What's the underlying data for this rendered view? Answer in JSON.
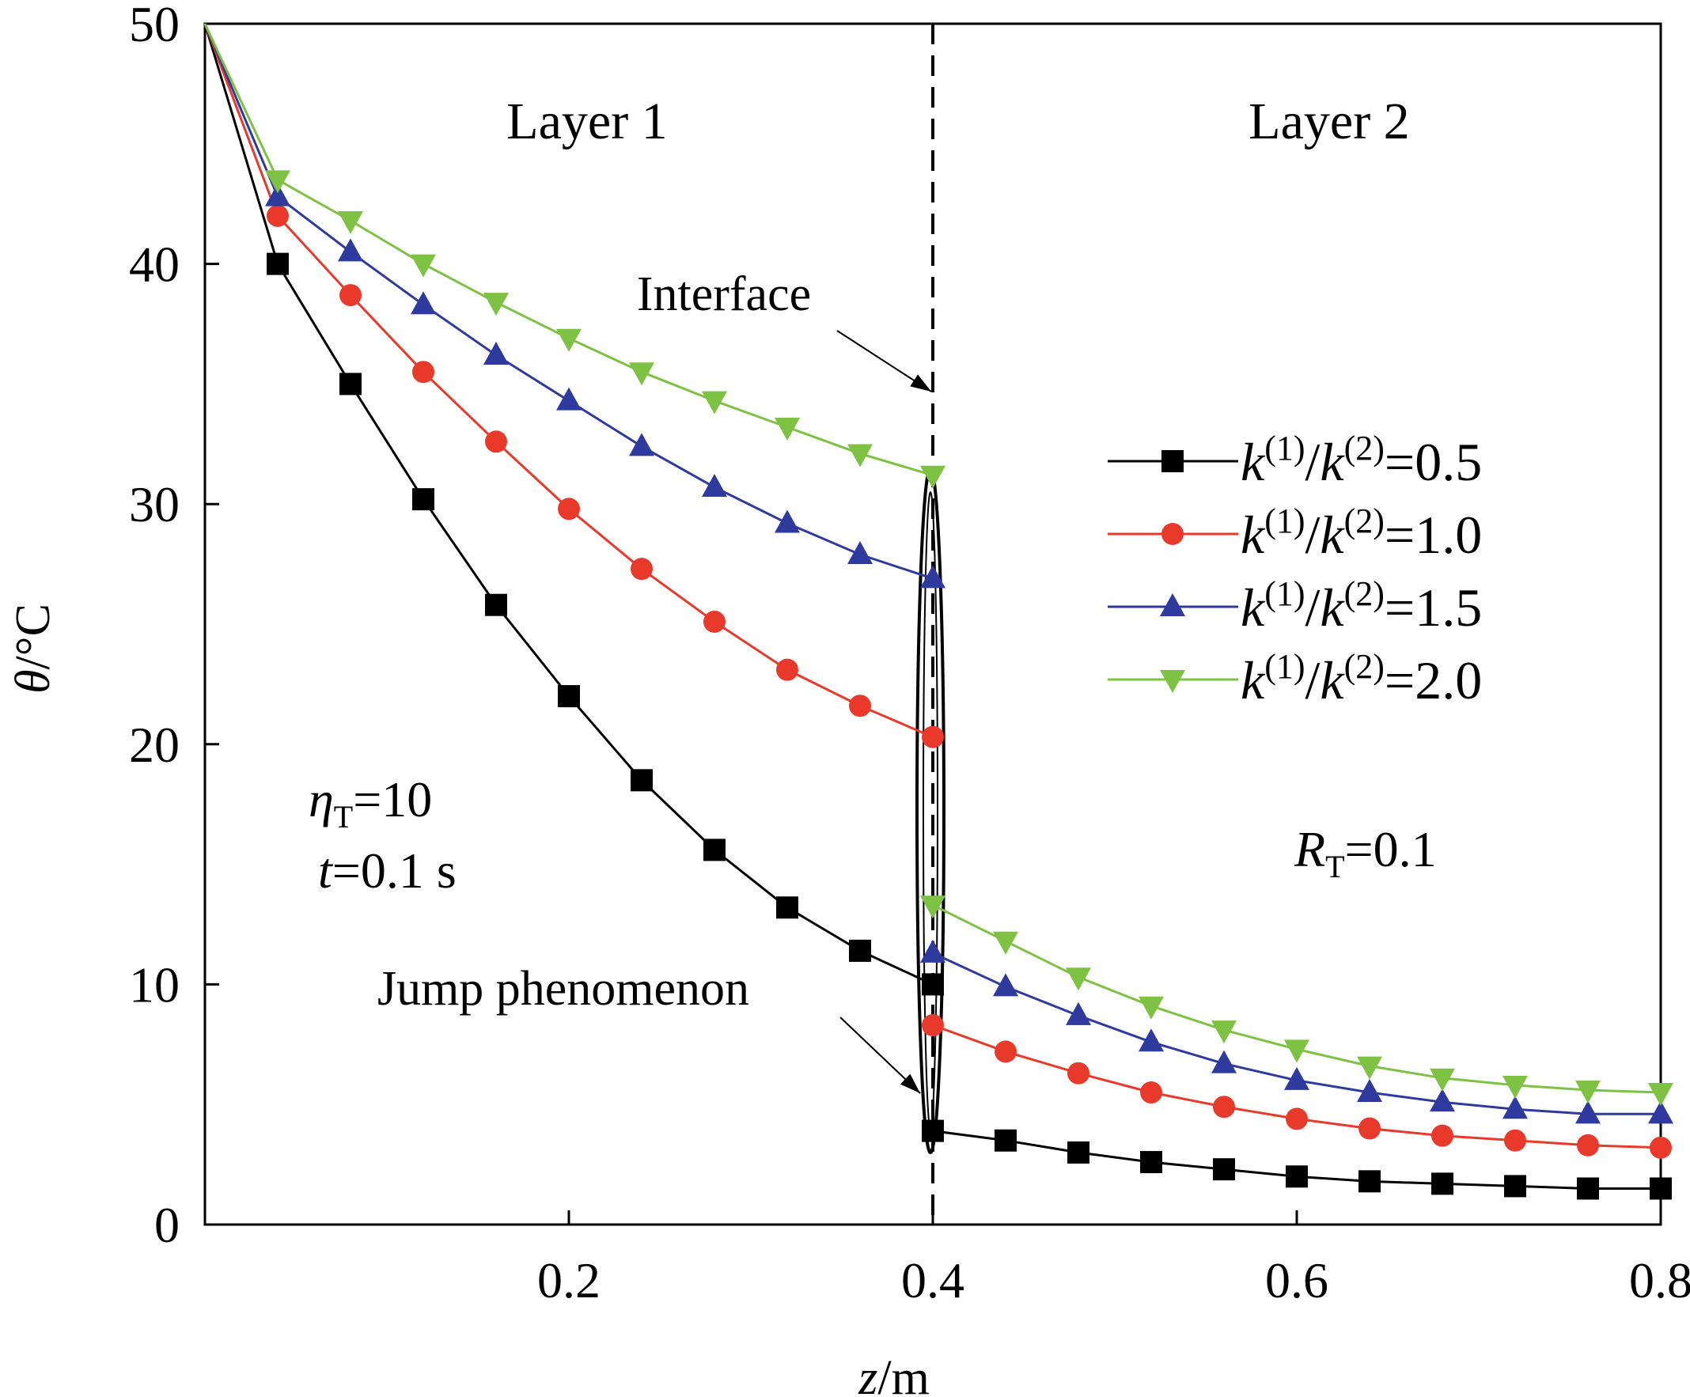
{
  "chart_data": {
    "type": "line",
    "xlabel": {
      "var": "z",
      "unit": "/m"
    },
    "ylabel": {
      "var": "θ",
      "unit": "/°C"
    },
    "xlim": [
      0,
      0.8
    ],
    "ylim": [
      0,
      50
    ],
    "x_ticks": [
      {
        "v": 0.2,
        "label": "0.2"
      },
      {
        "v": 0.4,
        "label": "0.4"
      },
      {
        "v": 0.6,
        "label": "0.6"
      },
      {
        "v": 0.8,
        "label": "0.8"
      }
    ],
    "y_ticks": [
      {
        "v": 0,
        "label": "0"
      },
      {
        "v": 10,
        "label": "10"
      },
      {
        "v": 20,
        "label": "20"
      },
      {
        "v": 30,
        "label": "30"
      },
      {
        "v": 40,
        "label": "40"
      },
      {
        "v": 50,
        "label": "50"
      }
    ],
    "grid": false,
    "legend_position": "right",
    "interface_z": 0.4,
    "series": [
      {
        "name": "k(1)/k(2)=0.5",
        "value": "0.5",
        "color": "#000000",
        "marker": "square",
        "layer1": [
          [
            0,
            50
          ],
          [
            0.04,
            40
          ],
          [
            0.08,
            35
          ],
          [
            0.12,
            30.2
          ],
          [
            0.16,
            25.8
          ],
          [
            0.2,
            22
          ],
          [
            0.24,
            18.5
          ],
          [
            0.28,
            15.6
          ],
          [
            0.32,
            13.2
          ],
          [
            0.36,
            11.4
          ],
          [
            0.4,
            10
          ]
        ],
        "layer2": [
          [
            0.4,
            3.9
          ],
          [
            0.44,
            3.5
          ],
          [
            0.48,
            3
          ],
          [
            0.52,
            2.6
          ],
          [
            0.56,
            2.3
          ],
          [
            0.6,
            2
          ],
          [
            0.64,
            1.8
          ],
          [
            0.68,
            1.7
          ],
          [
            0.72,
            1.6
          ],
          [
            0.76,
            1.5
          ],
          [
            0.8,
            1.5
          ]
        ]
      },
      {
        "name": "k(1)/k(2)=1.0",
        "value": "1.0",
        "color": "#e8392a",
        "marker": "circle",
        "layer1": [
          [
            0,
            50
          ],
          [
            0.04,
            42
          ],
          [
            0.08,
            38.7
          ],
          [
            0.12,
            35.5
          ],
          [
            0.16,
            32.6
          ],
          [
            0.2,
            29.8
          ],
          [
            0.24,
            27.3
          ],
          [
            0.28,
            25.1
          ],
          [
            0.32,
            23.1
          ],
          [
            0.36,
            21.6
          ],
          [
            0.4,
            20.3
          ]
        ],
        "layer2": [
          [
            0.4,
            8.3
          ],
          [
            0.44,
            7.2
          ],
          [
            0.48,
            6.3
          ],
          [
            0.52,
            5.5
          ],
          [
            0.56,
            4.9
          ],
          [
            0.6,
            4.4
          ],
          [
            0.64,
            4
          ],
          [
            0.68,
            3.7
          ],
          [
            0.72,
            3.5
          ],
          [
            0.76,
            3.3
          ],
          [
            0.8,
            3.2
          ]
        ]
      },
      {
        "name": "k(1)/k(2)=1.5",
        "value": "1.5",
        "color": "#2f3a9e",
        "marker": "triangle-up",
        "layer1": [
          [
            0,
            50
          ],
          [
            0.04,
            42.8
          ],
          [
            0.08,
            40.5
          ],
          [
            0.12,
            38.3
          ],
          [
            0.16,
            36.2
          ],
          [
            0.2,
            34.3
          ],
          [
            0.24,
            32.4
          ],
          [
            0.28,
            30.7
          ],
          [
            0.32,
            29.2
          ],
          [
            0.36,
            27.9
          ],
          [
            0.4,
            26.9
          ]
        ],
        "layer2": [
          [
            0.4,
            11.3
          ],
          [
            0.44,
            9.9
          ],
          [
            0.48,
            8.7
          ],
          [
            0.52,
            7.6
          ],
          [
            0.56,
            6.7
          ],
          [
            0.6,
            6
          ],
          [
            0.64,
            5.5
          ],
          [
            0.68,
            5.1
          ],
          [
            0.72,
            4.8
          ],
          [
            0.76,
            4.6
          ],
          [
            0.8,
            4.6
          ]
        ]
      },
      {
        "name": "k(1)/k(2)=2.0",
        "value": "2.0",
        "color": "#7dc242",
        "marker": "triangle-down",
        "layer1": [
          [
            0,
            50
          ],
          [
            0.04,
            43.5
          ],
          [
            0.08,
            41.8
          ],
          [
            0.12,
            40
          ],
          [
            0.16,
            38.4
          ],
          [
            0.2,
            36.9
          ],
          [
            0.24,
            35.5
          ],
          [
            0.28,
            34.3
          ],
          [
            0.32,
            33.2
          ],
          [
            0.36,
            32.1
          ],
          [
            0.4,
            31.2
          ]
        ],
        "layer2": [
          [
            0.4,
            13.3
          ],
          [
            0.44,
            11.8
          ],
          [
            0.48,
            10.3
          ],
          [
            0.52,
            9.1
          ],
          [
            0.56,
            8.1
          ],
          [
            0.6,
            7.3
          ],
          [
            0.64,
            6.6
          ],
          [
            0.68,
            6.1
          ],
          [
            0.72,
            5.8
          ],
          [
            0.76,
            5.6
          ],
          [
            0.8,
            5.5
          ]
        ]
      }
    ],
    "annotations": {
      "layer1": "Layer 1",
      "layer2": "Layer 2",
      "interface": "Interface",
      "jump": "Jump phenomenon",
      "eta_var": "η",
      "eta_sub": "T",
      "eta_val": "=10",
      "t_var": "t",
      "t_val": "=0.1 s",
      "r_var": "R",
      "r_sub": "T",
      "r_val": "=0.1"
    },
    "legend_label": {
      "var": "k",
      "sup1": "(1)",
      "sup2": "(2)"
    }
  }
}
